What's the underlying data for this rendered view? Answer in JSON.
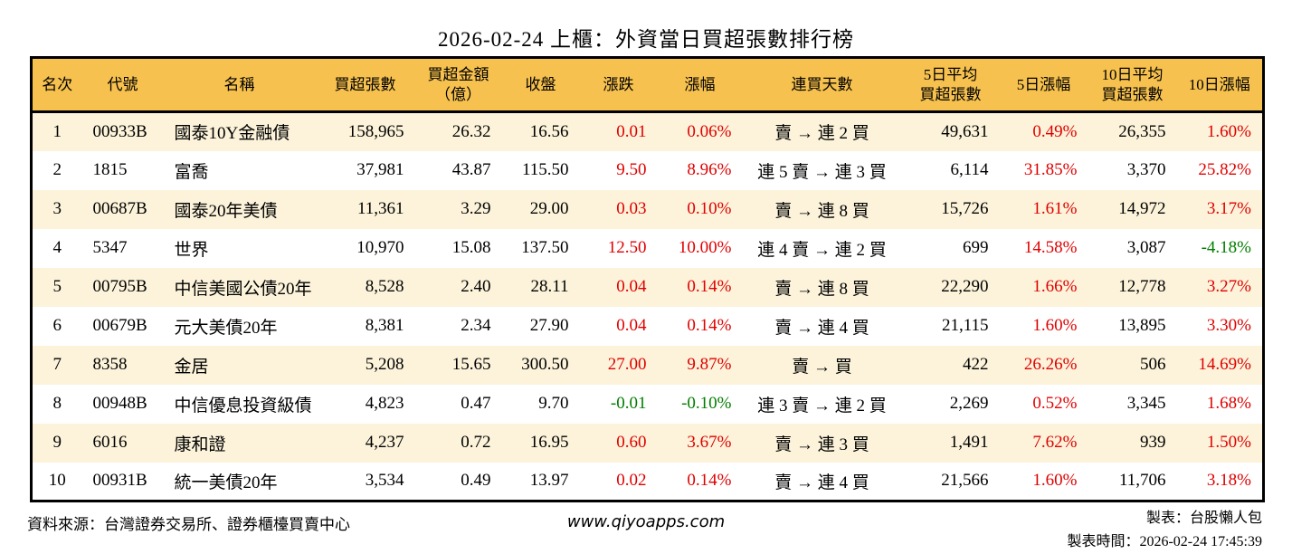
{
  "title": "2026-02-24 上櫃：外資當日買超張數排行榜",
  "colors": {
    "header-bg": "#F6C14E",
    "row-alt": "#FCF3DA",
    "up": "#E00000",
    "down": "#007D00",
    "border": "#000000"
  },
  "table": {
    "columns": [
      {
        "key": "rank",
        "label": "名次",
        "align": "center"
      },
      {
        "key": "code",
        "label": "代號",
        "align": "left"
      },
      {
        "key": "name",
        "label": "名稱",
        "align": "left"
      },
      {
        "key": "vol",
        "label": "買超張數",
        "align": "right"
      },
      {
        "key": "amt",
        "label": "買超金額\n（億）",
        "align": "right"
      },
      {
        "key": "close",
        "label": "收盤",
        "align": "right"
      },
      {
        "key": "chg",
        "label": "漲跌",
        "align": "right"
      },
      {
        "key": "chg_pct",
        "label": "漲幅",
        "align": "right"
      },
      {
        "key": "streak",
        "label": "連買天數",
        "align": "center"
      },
      {
        "key": "avg5",
        "label": "5日平均\n買超張數",
        "align": "right"
      },
      {
        "key": "pct5",
        "label": "5日漲幅",
        "align": "right"
      },
      {
        "key": "avg10",
        "label": "10日平均\n買超張數",
        "align": "right"
      },
      {
        "key": "pct10",
        "label": "10日漲幅",
        "align": "right"
      }
    ],
    "rows": [
      {
        "rank": "1",
        "code": "00933B",
        "name": "國泰10Y金融債",
        "vol": "158,965",
        "amt": "26.32",
        "close": "16.56",
        "chg": "0.01",
        "chg_cls": "up",
        "chg_pct": "0.06%",
        "chg_pct_cls": "up",
        "streak": "賣 → 連 2 買",
        "avg5": "49,631",
        "pct5": "0.49%",
        "pct5_cls": "up",
        "avg10": "26,355",
        "pct10": "1.60%",
        "pct10_cls": "up"
      },
      {
        "rank": "2",
        "code": "1815",
        "name": "富喬",
        "vol": "37,981",
        "amt": "43.87",
        "close": "115.50",
        "chg": "9.50",
        "chg_cls": "up",
        "chg_pct": "8.96%",
        "chg_pct_cls": "up",
        "streak": "連 5 賣 → 連 3 買",
        "avg5": "6,114",
        "pct5": "31.85%",
        "pct5_cls": "up",
        "avg10": "3,370",
        "pct10": "25.82%",
        "pct10_cls": "up"
      },
      {
        "rank": "3",
        "code": "00687B",
        "name": "國泰20年美債",
        "vol": "11,361",
        "amt": "3.29",
        "close": "29.00",
        "chg": "0.03",
        "chg_cls": "up",
        "chg_pct": "0.10%",
        "chg_pct_cls": "up",
        "streak": "賣 → 連 8 買",
        "avg5": "15,726",
        "pct5": "1.61%",
        "pct5_cls": "up",
        "avg10": "14,972",
        "pct10": "3.17%",
        "pct10_cls": "up"
      },
      {
        "rank": "4",
        "code": "5347",
        "name": "世界",
        "vol": "10,970",
        "amt": "15.08",
        "close": "137.50",
        "chg": "12.50",
        "chg_cls": "up",
        "chg_pct": "10.00%",
        "chg_pct_cls": "up",
        "streak": "連 4 賣 → 連 2 買",
        "avg5": "699",
        "pct5": "14.58%",
        "pct5_cls": "up",
        "avg10": "3,087",
        "pct10": "-4.18%",
        "pct10_cls": "down"
      },
      {
        "rank": "5",
        "code": "00795B",
        "name": "中信美國公債20年",
        "vol": "8,528",
        "amt": "2.40",
        "close": "28.11",
        "chg": "0.04",
        "chg_cls": "up",
        "chg_pct": "0.14%",
        "chg_pct_cls": "up",
        "streak": "賣 → 連 8 買",
        "avg5": "22,290",
        "pct5": "1.66%",
        "pct5_cls": "up",
        "avg10": "12,778",
        "pct10": "3.27%",
        "pct10_cls": "up"
      },
      {
        "rank": "6",
        "code": "00679B",
        "name": "元大美債20年",
        "vol": "8,381",
        "amt": "2.34",
        "close": "27.90",
        "chg": "0.04",
        "chg_cls": "up",
        "chg_pct": "0.14%",
        "chg_pct_cls": "up",
        "streak": "賣 → 連 4 買",
        "avg5": "21,115",
        "pct5": "1.60%",
        "pct5_cls": "up",
        "avg10": "13,895",
        "pct10": "3.30%",
        "pct10_cls": "up"
      },
      {
        "rank": "7",
        "code": "8358",
        "name": "金居",
        "vol": "5,208",
        "amt": "15.65",
        "close": "300.50",
        "chg": "27.00",
        "chg_cls": "up",
        "chg_pct": "9.87%",
        "chg_pct_cls": "up",
        "streak": "賣 → 買",
        "avg5": "422",
        "pct5": "26.26%",
        "pct5_cls": "up",
        "avg10": "506",
        "pct10": "14.69%",
        "pct10_cls": "up"
      },
      {
        "rank": "8",
        "code": "00948B",
        "name": "中信優息投資級債",
        "vol": "4,823",
        "amt": "0.47",
        "close": "9.70",
        "chg": "-0.01",
        "chg_cls": "down",
        "chg_pct": "-0.10%",
        "chg_pct_cls": "down",
        "streak": "連 3 賣 → 連 2 買",
        "avg5": "2,269",
        "pct5": "0.52%",
        "pct5_cls": "up",
        "avg10": "3,345",
        "pct10": "1.68%",
        "pct10_cls": "up"
      },
      {
        "rank": "9",
        "code": "6016",
        "name": "康和證",
        "vol": "4,237",
        "amt": "0.72",
        "close": "16.95",
        "chg": "0.60",
        "chg_cls": "up",
        "chg_pct": "3.67%",
        "chg_pct_cls": "up",
        "streak": "賣 → 連 3 買",
        "avg5": "1,491",
        "pct5": "7.62%",
        "pct5_cls": "up",
        "avg10": "939",
        "pct10": "1.50%",
        "pct10_cls": "up"
      },
      {
        "rank": "10",
        "code": "00931B",
        "name": "統一美債20年",
        "vol": "3,534",
        "amt": "0.49",
        "close": "13.97",
        "chg": "0.02",
        "chg_cls": "up",
        "chg_pct": "0.14%",
        "chg_pct_cls": "up",
        "streak": "賣 → 連 4 買",
        "avg5": "21,566",
        "pct5": "1.60%",
        "pct5_cls": "up",
        "avg10": "11,706",
        "pct10": "3.18%",
        "pct10_cls": "up"
      }
    ]
  },
  "footer": {
    "source": "資料來源：台灣證券交易所、證券櫃檯買賣中心",
    "site": "www.qiyoapps.com",
    "maker": "製表：台股懶人包",
    "made_at": "製表時間：2026-02-24 17:45:39"
  }
}
